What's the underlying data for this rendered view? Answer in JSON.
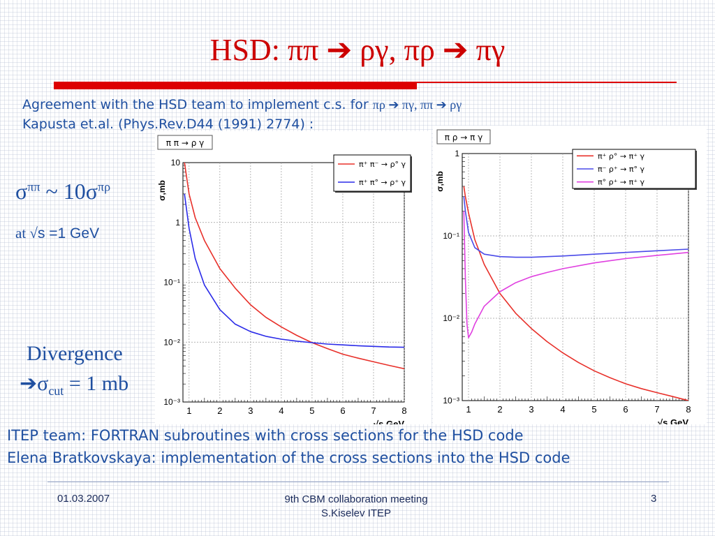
{
  "slide": {
    "title": "HSD: ππ ➔ ργ, πρ ➔ πγ",
    "intro_line1_text": "Agreement with the HSD team to implement c.s. for ",
    "intro_line1_reactions": "πρ ➔ πγ, ππ ➔ ργ",
    "intro_line2": "Kapusta et.al. (Phys.Rev.D44 (1991) 2774) :",
    "sigma_base1": "σ",
    "sigma_sup1": "ππ",
    "sigma_mid": " ~ 10σ",
    "sigma_sup2": "πρ",
    "at_prefix": "at √",
    "at_rest": "s =1 GeV",
    "divergence": "Divergence",
    "cut_arrow_sigma": "➔σ",
    "cut_sub": "cut",
    "cut_value": " = 1 mb",
    "bottom_line1": "ITEP team: FORTRAN subroutines with cross sections for the HSD code",
    "bottom_line2": "Elena Bratkovskaya: implementation of the cross sections into the HSD code",
    "footer_date": "01.03.2007",
    "footer_event": "9th CBM collaboration meeting",
    "footer_author": "S.Kiselev ITEP",
    "footer_page": "3"
  },
  "chart_data": [
    {
      "type": "line",
      "title": "π π → ρ γ",
      "xlabel": "√s,GeV",
      "ylabel": "σ,mb",
      "log_y": true,
      "xlim": [
        0.8,
        8
      ],
      "ylim": [
        0.001,
        10
      ],
      "x_ticks": [
        "1",
        "2",
        "3",
        "4",
        "5",
        "6",
        "7",
        "8"
      ],
      "y_ticks": [
        "10⁻³",
        "10⁻²",
        "10⁻¹",
        "1",
        "10"
      ],
      "grid": true,
      "legend_position": "top-right",
      "series": [
        {
          "name": "π⁺ π⁻ → ρ° γ",
          "color": "#e8302a",
          "x": [
            0.85,
            1.0,
            1.2,
            1.5,
            2.0,
            2.5,
            3.0,
            3.5,
            4.0,
            4.5,
            5.0,
            5.5,
            6.0,
            6.5,
            7.0,
            7.5,
            8.0
          ],
          "y": [
            10,
            3.0,
            1.2,
            0.5,
            0.17,
            0.08,
            0.042,
            0.026,
            0.018,
            0.013,
            0.0098,
            0.0078,
            0.0063,
            0.0054,
            0.0047,
            0.0041,
            0.0036
          ]
        },
        {
          "name": "π⁺ π° → ρ⁺ γ",
          "color": "#2a2ae8",
          "x": [
            0.85,
            1.0,
            1.2,
            1.5,
            2.0,
            2.5,
            3.0,
            3.5,
            4.0,
            4.5,
            5.0,
            5.5,
            6.0,
            6.5,
            7.0,
            7.5,
            8.0
          ],
          "y": [
            3.0,
            0.8,
            0.25,
            0.09,
            0.035,
            0.02,
            0.015,
            0.0125,
            0.0112,
            0.0104,
            0.0098,
            0.0093,
            0.009,
            0.0087,
            0.0085,
            0.0083,
            0.0082
          ]
        }
      ]
    },
    {
      "type": "line",
      "title": "π ρ → π γ",
      "xlabel": "√s,GeV",
      "ylabel": "σ,mb",
      "log_y": true,
      "xlim": [
        0.8,
        8
      ],
      "ylim": [
        0.001,
        1
      ],
      "x_ticks": [
        "1",
        "2",
        "3",
        "4",
        "5",
        "6",
        "7",
        "8"
      ],
      "y_ticks": [
        "10⁻³",
        "10⁻²",
        "10⁻¹",
        "1"
      ],
      "grid": true,
      "legend_position": "top-right",
      "series": [
        {
          "name": "π⁺ ρ° → π⁺ γ",
          "color": "#e8302a",
          "x": [
            0.85,
            0.9,
            1.0,
            1.2,
            1.5,
            2.0,
            2.5,
            3.0,
            3.5,
            4.0,
            4.5,
            5.0,
            5.5,
            6.0,
            6.5,
            7.0,
            7.5,
            8.0
          ],
          "y": [
            0.4,
            0.3,
            0.19,
            0.09,
            0.045,
            0.02,
            0.0115,
            0.0075,
            0.0052,
            0.0038,
            0.0029,
            0.0023,
            0.0019,
            0.0016,
            0.0014,
            0.00125,
            0.00112,
            0.001
          ]
        },
        {
          "name": "π⁻ ρ⁺ → π° γ",
          "color": "#4a4ae8",
          "x": [
            0.85,
            0.9,
            1.0,
            1.2,
            1.5,
            2.0,
            2.5,
            3.0,
            3.5,
            4.0,
            5.0,
            6.0,
            7.0,
            8.0
          ],
          "y": [
            0.3,
            0.2,
            0.11,
            0.072,
            0.06,
            0.056,
            0.055,
            0.055,
            0.056,
            0.057,
            0.06,
            0.063,
            0.066,
            0.069
          ]
        },
        {
          "name": "π° ρ⁺ → π⁺ γ",
          "color": "#e040e0",
          "x": [
            0.85,
            0.9,
            0.95,
            1.0,
            1.1,
            1.2,
            1.5,
            2.0,
            2.5,
            3.0,
            3.5,
            4.0,
            5.0,
            6.0,
            7.0,
            8.0
          ],
          "y": [
            0.2,
            0.03,
            0.0085,
            0.0058,
            0.0068,
            0.0085,
            0.014,
            0.021,
            0.027,
            0.032,
            0.036,
            0.04,
            0.047,
            0.053,
            0.058,
            0.063
          ]
        }
      ]
    }
  ]
}
